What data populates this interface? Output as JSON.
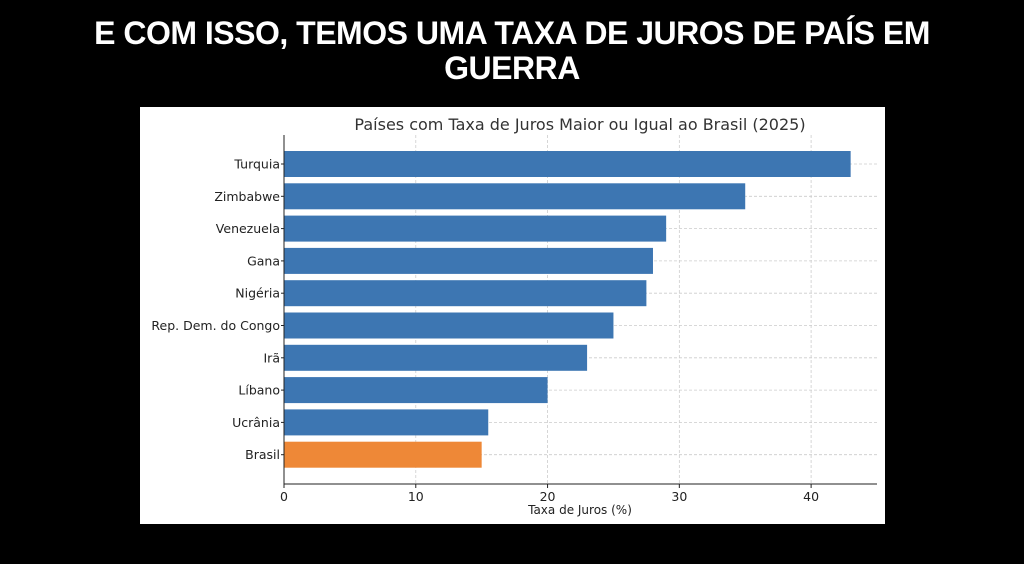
{
  "slide": {
    "title_line1": "E COM ISSO, TEMOS UMA TAXA DE JUROS DE PAÍS EM",
    "title_line2": "GUERRA"
  },
  "colors": {
    "default_bar": "#3d76b2",
    "highlight_bar": "#ee8837",
    "background": "#000000",
    "chart_background": "#ffffff"
  },
  "chart_data": {
    "type": "bar",
    "orientation": "horizontal",
    "title": "Países com Taxa de Juros Maior ou Igual ao Brasil (2025)",
    "xlabel": "Taxa de Juros (%)",
    "ylabel": "",
    "xlim": [
      0,
      45
    ],
    "xticks": [
      0,
      10,
      20,
      30,
      40
    ],
    "grid": true,
    "categories": [
      "Turquia",
      "Zimbabwe",
      "Venezuela",
      "Gana",
      "Nigéria",
      "Rep. Dem. do Congo",
      "Irã",
      "Líbano",
      "Ucrânia",
      "Brasil"
    ],
    "values": [
      43,
      35,
      29,
      28,
      27.5,
      25,
      23,
      20,
      15.5,
      15
    ],
    "highlight": "Brasil"
  }
}
